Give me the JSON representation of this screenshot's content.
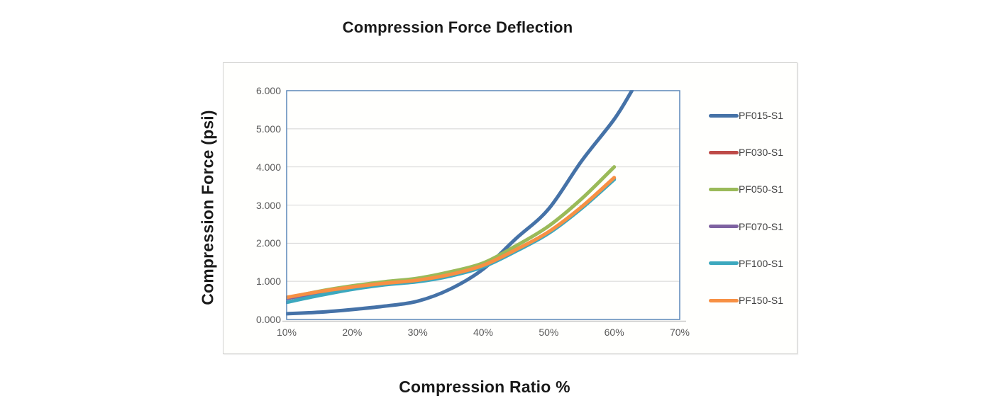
{
  "chart": {
    "title": "Compression Force Deflection",
    "x_axis_title": "Compression Ratio %",
    "y_axis_title": "Compression Force (psi)"
  },
  "chart_data": {
    "type": "line",
    "title": "Compression Force Deflection",
    "xlabel": "Compression Ratio %",
    "ylabel": "Compression Force (psi)",
    "xlim": [
      10,
      70
    ],
    "ylim": [
      0,
      6
    ],
    "grid": "horizontal",
    "legend_position": "right",
    "x_ticks": [
      "10%",
      "20%",
      "30%",
      "40%",
      "50%",
      "60%",
      "70%"
    ],
    "x_tick_values": [
      10,
      20,
      30,
      40,
      50,
      60,
      70
    ],
    "y_ticks": [
      "0.000",
      "1.000",
      "2.000",
      "3.000",
      "4.000",
      "5.000",
      "6.000"
    ],
    "y_tick_values": [
      0,
      1,
      2,
      3,
      4,
      5,
      6
    ],
    "x": [
      10,
      15,
      20,
      25,
      30,
      35,
      40,
      45,
      50,
      55,
      60,
      62.7
    ],
    "series": [
      {
        "name": "PF015-S1",
        "color": "#4572A7",
        "values": [
          0.15,
          0.19,
          0.26,
          0.35,
          0.48,
          0.8,
          1.32,
          2.12,
          2.9,
          4.15,
          5.25,
          6.0
        ]
      },
      {
        "name": "PF030-S1",
        "color": "#BE4B48",
        "values": [
          0.55,
          0.7,
          0.83,
          0.93,
          1.01,
          1.16,
          1.4,
          1.81,
          2.28,
          2.93,
          3.69,
          null
        ]
      },
      {
        "name": "PF050-S1",
        "color": "#9ABA59",
        "values": [
          0.56,
          0.74,
          0.88,
          0.99,
          1.08,
          1.25,
          1.48,
          1.93,
          2.45,
          3.16,
          4.0,
          null
        ]
      },
      {
        "name": "PF070-S1",
        "color": "#7E62A1",
        "values": [
          0.555,
          0.705,
          0.835,
          0.935,
          1.015,
          1.165,
          1.405,
          1.815,
          2.285,
          2.935,
          3.7,
          null
        ]
      },
      {
        "name": "PF100-S1",
        "color": "#3CA8BE",
        "values": [
          0.45,
          0.63,
          0.79,
          0.91,
          0.99,
          1.14,
          1.38,
          1.79,
          2.26,
          2.91,
          3.67,
          null
        ]
      },
      {
        "name": "PF150-S1",
        "color": "#F79044",
        "values": [
          0.58,
          0.73,
          0.85,
          0.95,
          1.03,
          1.18,
          1.42,
          1.83,
          2.3,
          2.95,
          3.72,
          null
        ]
      }
    ],
    "style": {
      "plot_border_color": "#5C87B8",
      "gridline_color": "#D4D4D4",
      "axis_shadow_color": "#C9C9C9",
      "tick_label_color": "#5A5A5A",
      "legend_text_color": "#3F3F3F",
      "line_width": 5
    }
  }
}
